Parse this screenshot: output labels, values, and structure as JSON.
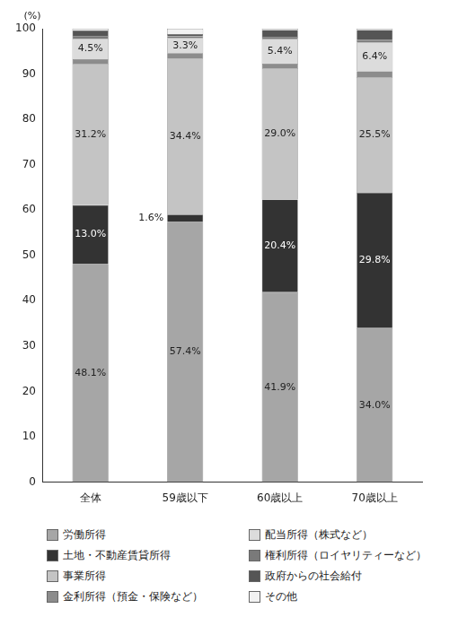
{
  "chart_data": {
    "type": "bar",
    "stacked": true,
    "y_label": "(%)",
    "categories": [
      "全体",
      "59歳以下",
      "60歳以上",
      "70歳以上"
    ],
    "ylim": [
      0,
      100
    ],
    "yticks": [
      0,
      10,
      20,
      30,
      40,
      50,
      60,
      70,
      80,
      90,
      100
    ],
    "grid": false,
    "legend": "bottom",
    "data_labels": true,
    "series": [
      {
        "name": "労働所得",
        "color": "#a6a6a6",
        "values": [
          48.1,
          57.4,
          41.9,
          34.0
        ],
        "value_labels": [
          "48.1%",
          "57.4%",
          "41.9%",
          "34.0%"
        ]
      },
      {
        "name": "土地・不動産賃貸所得",
        "color": "#333333",
        "values": [
          13.0,
          1.6,
          20.4,
          29.8
        ],
        "value_labels": [
          "13.0%",
          "1.6%",
          "20.4%",
          "29.8%"
        ]
      },
      {
        "name": "事業所得",
        "color": "#c4c4c4",
        "values": [
          31.2,
          34.4,
          29.0,
          25.5
        ],
        "value_labels": [
          "31.2%",
          "34.4%",
          "29.0%",
          "25.5%"
        ]
      },
      {
        "name": "金利所得（預金・保険など）",
        "color": "#8c8c8c",
        "values": [
          1.0,
          1.2,
          1.0,
          1.3
        ]
      },
      {
        "name": "配当所得（株式など）",
        "color": "#dcdcdc",
        "values": [
          4.5,
          3.3,
          5.4,
          6.4
        ],
        "value_labels": [
          "4.5%",
          "3.3%",
          "5.4%",
          "6.4%"
        ]
      },
      {
        "name": "権利所得（ロイヤリティーなど）",
        "color": "#7a7a7a",
        "values": [
          0.6,
          0.4,
          0.5,
          0.5
        ]
      },
      {
        "name": "政府からの社会給付",
        "color": "#555555",
        "values": [
          1.2,
          0.5,
          1.5,
          2.2
        ]
      },
      {
        "name": "その他",
        "color": "#f2f2f2",
        "values": [
          0.4,
          1.2,
          0.3,
          0.3
        ]
      }
    ]
  }
}
